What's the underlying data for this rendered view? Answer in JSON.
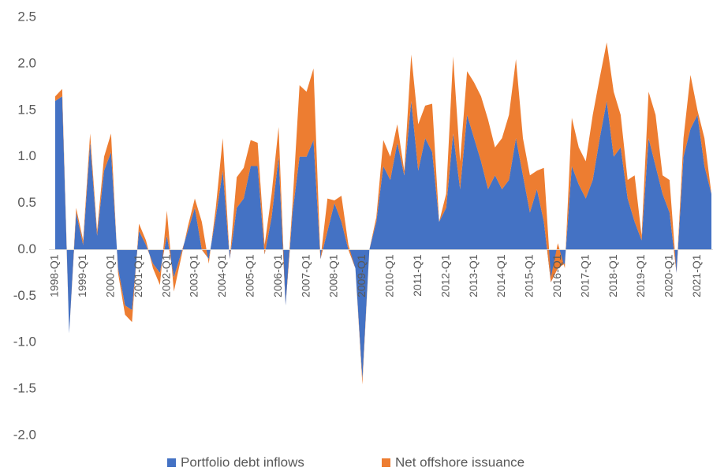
{
  "chart_data": {
    "type": "stacked_area",
    "categories": [
      "1998-Q1",
      null,
      null,
      null,
      "1999-Q1",
      null,
      null,
      null,
      "2000-Q1",
      null,
      null,
      null,
      "2001-Q1",
      null,
      null,
      null,
      "2002-Q1",
      null,
      null,
      null,
      "2003-Q1",
      null,
      null,
      null,
      "2004-Q1",
      null,
      null,
      null,
      "2005-Q1",
      null,
      null,
      null,
      "2006-Q1",
      null,
      null,
      null,
      "2007-Q1",
      null,
      null,
      null,
      "2008-Q1",
      null,
      null,
      null,
      "2009-Q1",
      null,
      null,
      null,
      "2010-Q1",
      null,
      null,
      null,
      "2011-Q1",
      null,
      null,
      null,
      "2012-Q1",
      null,
      null,
      null,
      "2013-Q1",
      null,
      null,
      null,
      "2014-Q1",
      null,
      null,
      null,
      "2015-Q1",
      null,
      null,
      null,
      "2016-Q1",
      null,
      null,
      null,
      "2017-Q1",
      null,
      null,
      null,
      "2018-Q1",
      null,
      null,
      null,
      "2019-Q1",
      null,
      null,
      null,
      "2020-Q1",
      null,
      null,
      null,
      "2021-Q1",
      null,
      null
    ],
    "series": [
      {
        "name": "Portfolio debt inflows",
        "color": "#4472c4",
        "values": [
          1.6,
          1.65,
          -0.9,
          0.4,
          0.05,
          1.15,
          0.15,
          0.85,
          1.05,
          -0.2,
          -0.6,
          -0.65,
          0.2,
          0.05,
          -0.15,
          -0.25,
          0.15,
          -0.3,
          -0.05,
          0.2,
          0.45,
          0,
          -0.1,
          0.35,
          0.85,
          -0.1,
          0.45,
          0.55,
          0.9,
          0.9,
          -0.05,
          0.35,
          1.0,
          -0.6,
          0.4,
          1.0,
          1.0,
          1.18,
          -0.1,
          0.2,
          0.5,
          0.3,
          0,
          -0.2,
          -1.4,
          0,
          0.3,
          0.9,
          0.75,
          1.15,
          0.8,
          1.6,
          0.85,
          1.2,
          1.05,
          0.3,
          0.45,
          1.25,
          0.65,
          1.45,
          1.2,
          0.95,
          0.65,
          0.8,
          0.65,
          0.75,
          1.2,
          0.8,
          0.4,
          0.65,
          0.3,
          -0.35,
          -0.2,
          -0.15,
          0.9,
          0.7,
          0.55,
          0.75,
          1.2,
          1.6,
          1.0,
          1.1,
          0.55,
          0.3,
          0.1,
          1.2,
          0.9,
          0.6,
          0.4,
          -0.25,
          1.0,
          1.3,
          1.45,
          0.9,
          0.6
        ]
      },
      {
        "name": "Net offshore issuance",
        "color": "#ed7d31",
        "values": [
          0.05,
          0.08,
          0,
          0.05,
          0.05,
          0.1,
          0.05,
          0.15,
          0.2,
          -0.05,
          -0.1,
          -0.13,
          0.08,
          0.05,
          -0.05,
          -0.13,
          0.27,
          -0.15,
          -0.05,
          0.05,
          0.1,
          0.3,
          -0.05,
          0.1,
          0.35,
          0,
          0.33,
          0.33,
          0.28,
          0.25,
          0.1,
          0.25,
          0.32,
          0,
          0.1,
          0.77,
          0.7,
          0.77,
          0,
          0.35,
          0.03,
          0.28,
          0.05,
          0,
          -0.05,
          0,
          0.05,
          0.28,
          0.25,
          0.2,
          0.05,
          0.5,
          0.5,
          0.35,
          0.52,
          0,
          0.15,
          0.83,
          0.3,
          0.47,
          0.6,
          0.7,
          0.75,
          0.3,
          0.55,
          0.7,
          0.85,
          0.4,
          0.4,
          0.2,
          0.58,
          0.05,
          0.27,
          -0.05,
          0.52,
          0.4,
          0.4,
          0.7,
          0.65,
          0.63,
          0.7,
          0.35,
          0.2,
          0.5,
          0.05,
          0.5,
          0.55,
          0.2,
          0.35,
          0,
          0.2,
          0.58,
          0.05,
          0.3,
          0
        ]
      }
    ],
    "ylim": [
      -2.0,
      2.5
    ],
    "yticks": [
      {
        "value": -2,
        "label": "-2.0"
      },
      -1.5,
      {
        "value": -1,
        "label": "-1.0"
      },
      -0.5,
      {
        "value": 0,
        "label": "0.0"
      },
      0.5,
      {
        "value": 1,
        "label": "1.0"
      },
      1.5,
      {
        "value": 2,
        "label": "2.0"
      },
      2.5
    ],
    "legend": "bottom"
  }
}
